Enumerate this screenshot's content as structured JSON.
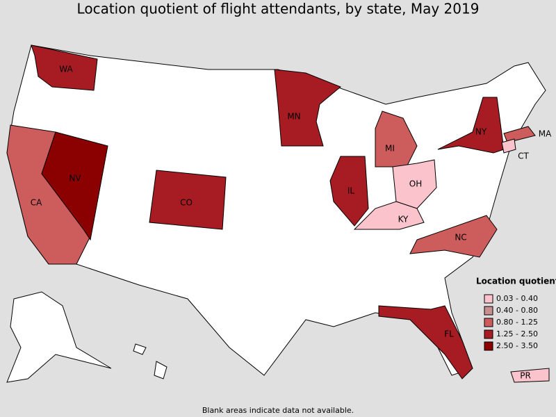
{
  "title": "Location quotient of flight attendants, by state, May 2019",
  "footnote": "Blank areas indicate data not available.",
  "legend": {
    "title": "Location quotient",
    "items": [
      {
        "label": "0.03 - 0.40",
        "color": "#fbc3cc",
        "states": [
          "OH",
          "KY",
          "CT",
          "PR"
        ]
      },
      {
        "label": "0.40 - 0.80",
        "color": "#c98f8f",
        "states": []
      },
      {
        "label": "0.80 - 1.25",
        "color": "#cd5c5c",
        "states": [
          "CA",
          "MI",
          "MA",
          "NC"
        ]
      },
      {
        "label": "1.25 - 2.50",
        "color": "#a61c22",
        "states": [
          "WA",
          "CO",
          "MN",
          "IL",
          "NY",
          "FL"
        ]
      },
      {
        "label": "2.50 - 3.50",
        "color": "#8b0000",
        "states": [
          "NV"
        ]
      }
    ]
  }
}
